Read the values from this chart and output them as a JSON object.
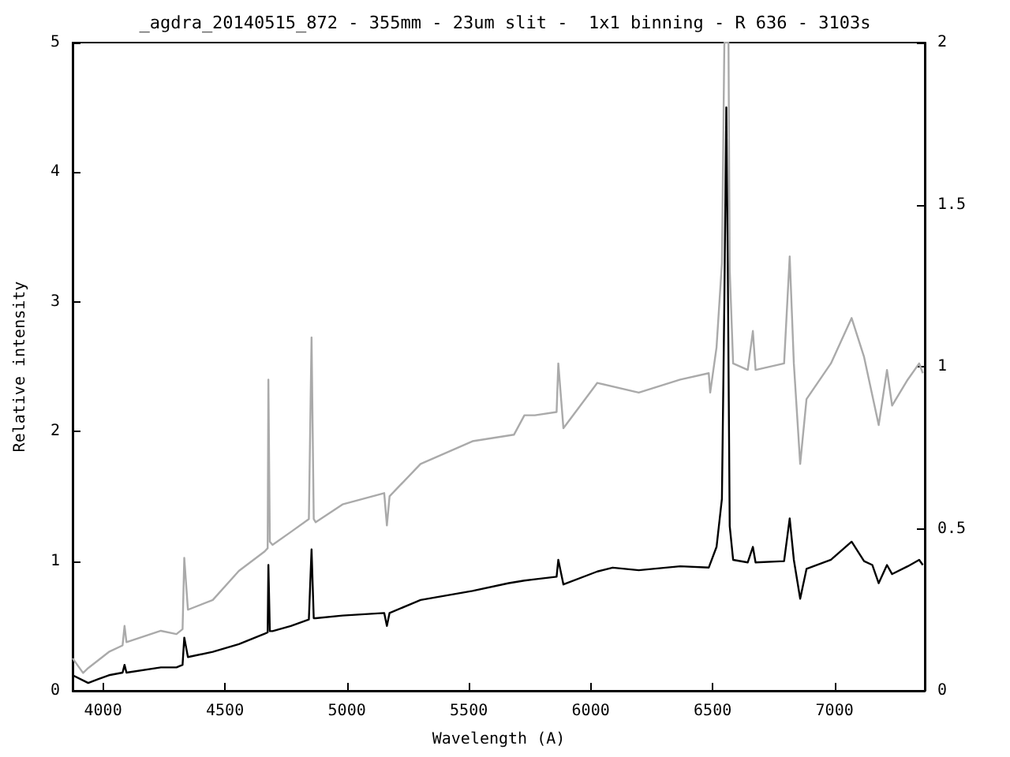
{
  "chart_data": {
    "type": "line",
    "title": "_agdra_20140515_872 - 355mm - 23um slit -  1x1 binning - R 636 - 3103s",
    "xlabel": "Wavelength (A)",
    "ylabel": "Relative intensity",
    "xlim": [
      3875,
      7370
    ],
    "xticks": [
      4000,
      4500,
      5000,
      5500,
      6000,
      6500,
      7000
    ],
    "ylim": [
      0,
      5
    ],
    "yticks": [
      0,
      1,
      2,
      3,
      4,
      5
    ],
    "y2lim": [
      0,
      2
    ],
    "y2ticks": [
      0,
      0.5,
      1,
      1.5,
      2
    ],
    "grid": false,
    "marker": "none",
    "line_style": "solid",
    "series": [
      {
        "color": "#aaaaaa",
        "axis": "y2",
        "x": [
          3875,
          3918,
          3939,
          4024,
          4080,
          4088,
          4096,
          4237,
          4301,
          4326,
          4333,
          4348,
          4450,
          4557,
          4663,
          4675,
          4678,
          4684,
          4695,
          4770,
          4844,
          4855,
          4864,
          4872,
          4982,
          5153,
          5164,
          5175,
          5302,
          5515,
          5685,
          5728,
          5771,
          5860,
          5867,
          5888,
          6027,
          6197,
          6367,
          6484,
          6490,
          6516,
          6538,
          6548,
          6565,
          6570,
          6584,
          6644,
          6665,
          6676,
          6793,
          6816,
          6833,
          6859,
          6885,
          6985,
          7070,
          7121,
          7181,
          7215,
          7236,
          7300,
          7347,
          7362
        ],
        "values": [
          0.1,
          0.055,
          0.07,
          0.12,
          0.14,
          0.2,
          0.15,
          0.185,
          0.175,
          0.19,
          0.41,
          0.25,
          0.28,
          0.37,
          0.43,
          0.44,
          0.96,
          0.46,
          0.45,
          0.49,
          0.53,
          1.09,
          0.53,
          0.52,
          0.575,
          0.61,
          0.51,
          0.6,
          0.7,
          0.77,
          0.79,
          0.85,
          0.85,
          0.86,
          1.01,
          0.81,
          0.95,
          0.92,
          0.96,
          0.98,
          0.92,
          1.06,
          1.32,
          2,
          2,
          1.3,
          1.01,
          0.99,
          1.11,
          0.99,
          1.01,
          1.34,
          1.01,
          0.7,
          0.9,
          1.01,
          1.15,
          1.03,
          0.82,
          0.99,
          0.88,
          0.96,
          1.01,
          0.98
        ]
      },
      {
        "color": "#000000",
        "x": [
          3875,
          3918,
          3939,
          3981,
          4024,
          4080,
          4088,
          4096,
          4237,
          4301,
          4326,
          4333,
          4348,
          4450,
          4557,
          4663,
          4675,
          4678,
          4684,
          4695,
          4770,
          4844,
          4855,
          4864,
          4872,
          4982,
          5153,
          5164,
          5175,
          5302,
          5515,
          5664,
          5728,
          5771,
          5860,
          5867,
          5888,
          6027,
          6090,
          6197,
          6367,
          6484,
          6516,
          6538,
          6548,
          6556,
          6562,
          6570,
          6584,
          6644,
          6665,
          6676,
          6793,
          6816,
          6833,
          6859,
          6885,
          6985,
          7070,
          7121,
          7155,
          7181,
          7215,
          7236,
          7300,
          7347,
          7362
        ],
        "values": [
          0.12,
          0.08,
          0.06,
          0.09,
          0.12,
          0.14,
          0.2,
          0.14,
          0.18,
          0.18,
          0.2,
          0.41,
          0.26,
          0.3,
          0.36,
          0.44,
          0.45,
          0.97,
          0.46,
          0.46,
          0.5,
          0.55,
          1.09,
          0.56,
          0.56,
          0.58,
          0.6,
          0.5,
          0.6,
          0.7,
          0.77,
          0.83,
          0.85,
          0.86,
          0.88,
          1.01,
          0.82,
          0.92,
          0.95,
          0.93,
          0.96,
          0.95,
          1.11,
          1.48,
          3.0,
          4.5,
          3.3,
          1.27,
          1.01,
          0.99,
          1.11,
          0.99,
          1.0,
          1.33,
          1.01,
          0.71,
          0.94,
          1.01,
          1.15,
          1.0,
          0.97,
          0.83,
          0.97,
          0.9,
          0.96,
          1.01,
          0.97
        ]
      }
    ]
  }
}
